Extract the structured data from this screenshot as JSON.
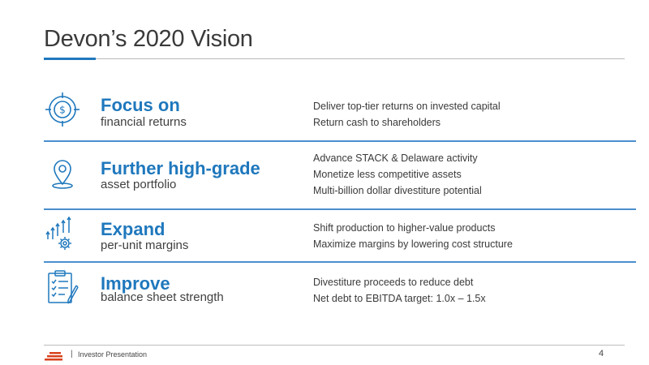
{
  "slide": {
    "title": "Devon’s 2020 Vision",
    "rows": [
      {
        "icon": "target-dollar-icon",
        "heading": "Focus on",
        "subheading": "financial returns",
        "bullets": [
          "Deliver top-tier returns on invested capital",
          "Return cash to shareholders"
        ]
      },
      {
        "icon": "map-pin-icon",
        "heading": "Further high-grade",
        "subheading": "asset portfolio",
        "bullets": [
          "Advance STACK & Delaware activity",
          "Monetize less competitive assets",
          "Multi-billion dollar divestiture potential"
        ]
      },
      {
        "icon": "arrows-gear-icon",
        "heading": "Expand",
        "subheading": "per-unit margins",
        "bullets": [
          "Shift production to higher-value products",
          "Maximize margins by lowering cost structure"
        ]
      },
      {
        "icon": "clipboard-checklist-icon",
        "heading": "Improve",
        "subheading": "balance sheet strength",
        "bullets": [
          "Divestiture proceeds to reduce debt",
          "Net debt to EBITDA target: 1.0x – 1.5x"
        ]
      }
    ]
  },
  "footer": {
    "separator": "|",
    "label": "Investor Presentation",
    "page_number": "4"
  },
  "colors": {
    "accent": "#1f78bd",
    "logo": "#d9411e"
  }
}
